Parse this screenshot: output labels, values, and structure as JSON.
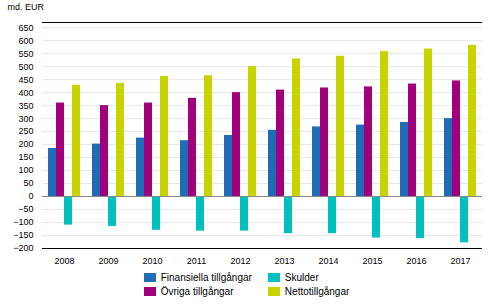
{
  "chart_data": {
    "type": "bar",
    "ylabel": "md. EUR",
    "categories": [
      2008,
      2009,
      2010,
      2011,
      2012,
      2013,
      2014,
      2015,
      2016,
      2017
    ],
    "series": [
      {
        "name": "Finansiella tillgångar",
        "color": "#1F6EB5",
        "values": [
          185,
          202,
          225,
          215,
          235,
          255,
          268,
          275,
          285,
          300
        ]
      },
      {
        "name": "Övriga tillgångar",
        "color": "#A0007C",
        "values": [
          360,
          350,
          360,
          378,
          400,
          410,
          418,
          422,
          433,
          445
        ]
      },
      {
        "name": "Skulder",
        "color": "#00BFBF",
        "values": [
          -110,
          -115,
          -130,
          -133,
          -133,
          -143,
          -143,
          -160,
          -162,
          -178
        ]
      },
      {
        "name": "Nettotillgångar",
        "color": "#C8D400",
        "values": [
          428,
          435,
          462,
          465,
          500,
          530,
          540,
          558,
          568,
          582
        ]
      }
    ],
    "ylim": [
      -200,
      670
    ],
    "yticks": [
      -200,
      -150,
      -100,
      -50,
      0,
      50,
      100,
      150,
      200,
      250,
      300,
      350,
      400,
      450,
      500,
      550,
      600,
      650
    ],
    "grid": true,
    "legend": "bottom"
  }
}
